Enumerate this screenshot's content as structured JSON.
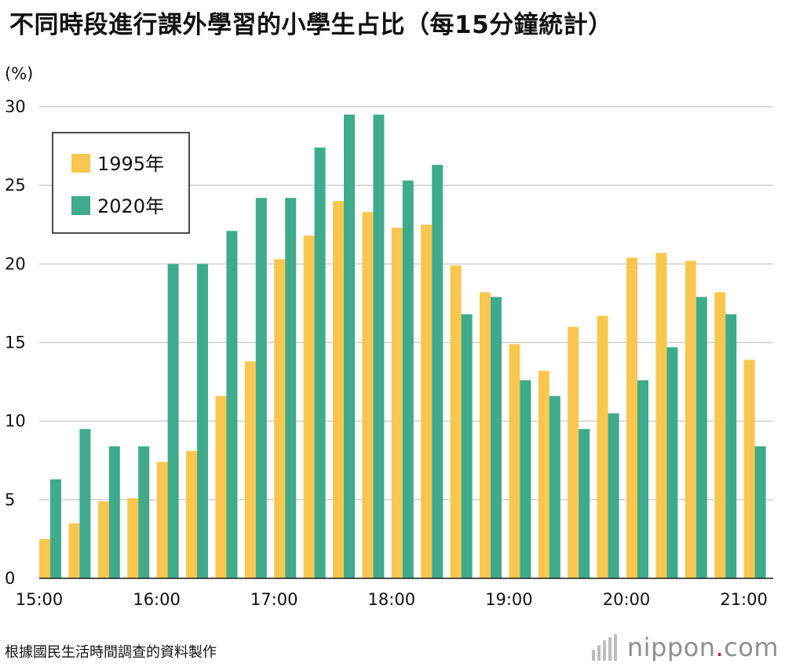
{
  "title": "不同時段進行課外學習的小學生占比（每15分鐘統計）",
  "unit_label": "(%)",
  "source": "根據國民生活時間調查的資料製作",
  "logo": {
    "name": "nippon",
    "dot": ".",
    "suffix": "com"
  },
  "chart_data": {
    "type": "bar",
    "title": "不同時段進行課外學習的小學生占比（每15分鐘統計）",
    "ylabel": "(%)",
    "xlabel": "",
    "ylim": [
      0,
      30
    ],
    "yticks": [
      "0",
      "5",
      "10",
      "15",
      "20",
      "25",
      "30"
    ],
    "xtick_labels": [
      "15:00",
      "16:00",
      "17:00",
      "18:00",
      "19:00",
      "20:00",
      "21:00"
    ],
    "grid": true,
    "legend_position": "top-left",
    "categories": [
      "15:00",
      "15:15",
      "15:30",
      "15:45",
      "16:00",
      "16:15",
      "16:30",
      "16:45",
      "17:00",
      "17:15",
      "17:30",
      "17:45",
      "18:00",
      "18:15",
      "18:30",
      "18:45",
      "19:00",
      "19:15",
      "19:30",
      "19:45",
      "20:00",
      "20:15",
      "20:30",
      "20:45",
      "21:00"
    ],
    "series": [
      {
        "name": "1995年",
        "color": "#f9c74f",
        "values": [
          2.5,
          3.5,
          4.9,
          5.1,
          7.4,
          8.1,
          11.6,
          13.8,
          20.3,
          21.8,
          24.0,
          23.3,
          22.3,
          22.5,
          19.9,
          18.2,
          14.9,
          13.2,
          16.0,
          16.7,
          20.4,
          20.7,
          20.2,
          18.2,
          13.9
        ]
      },
      {
        "name": "2020年",
        "color": "#3fab8a",
        "values": [
          6.3,
          9.5,
          8.4,
          8.4,
          20.0,
          20.0,
          22.1,
          24.2,
          24.2,
          27.4,
          29.5,
          29.5,
          25.3,
          26.3,
          16.8,
          17.9,
          12.6,
          11.6,
          9.5,
          10.5,
          12.6,
          14.7,
          17.9,
          16.8,
          8.4
        ]
      }
    ]
  }
}
